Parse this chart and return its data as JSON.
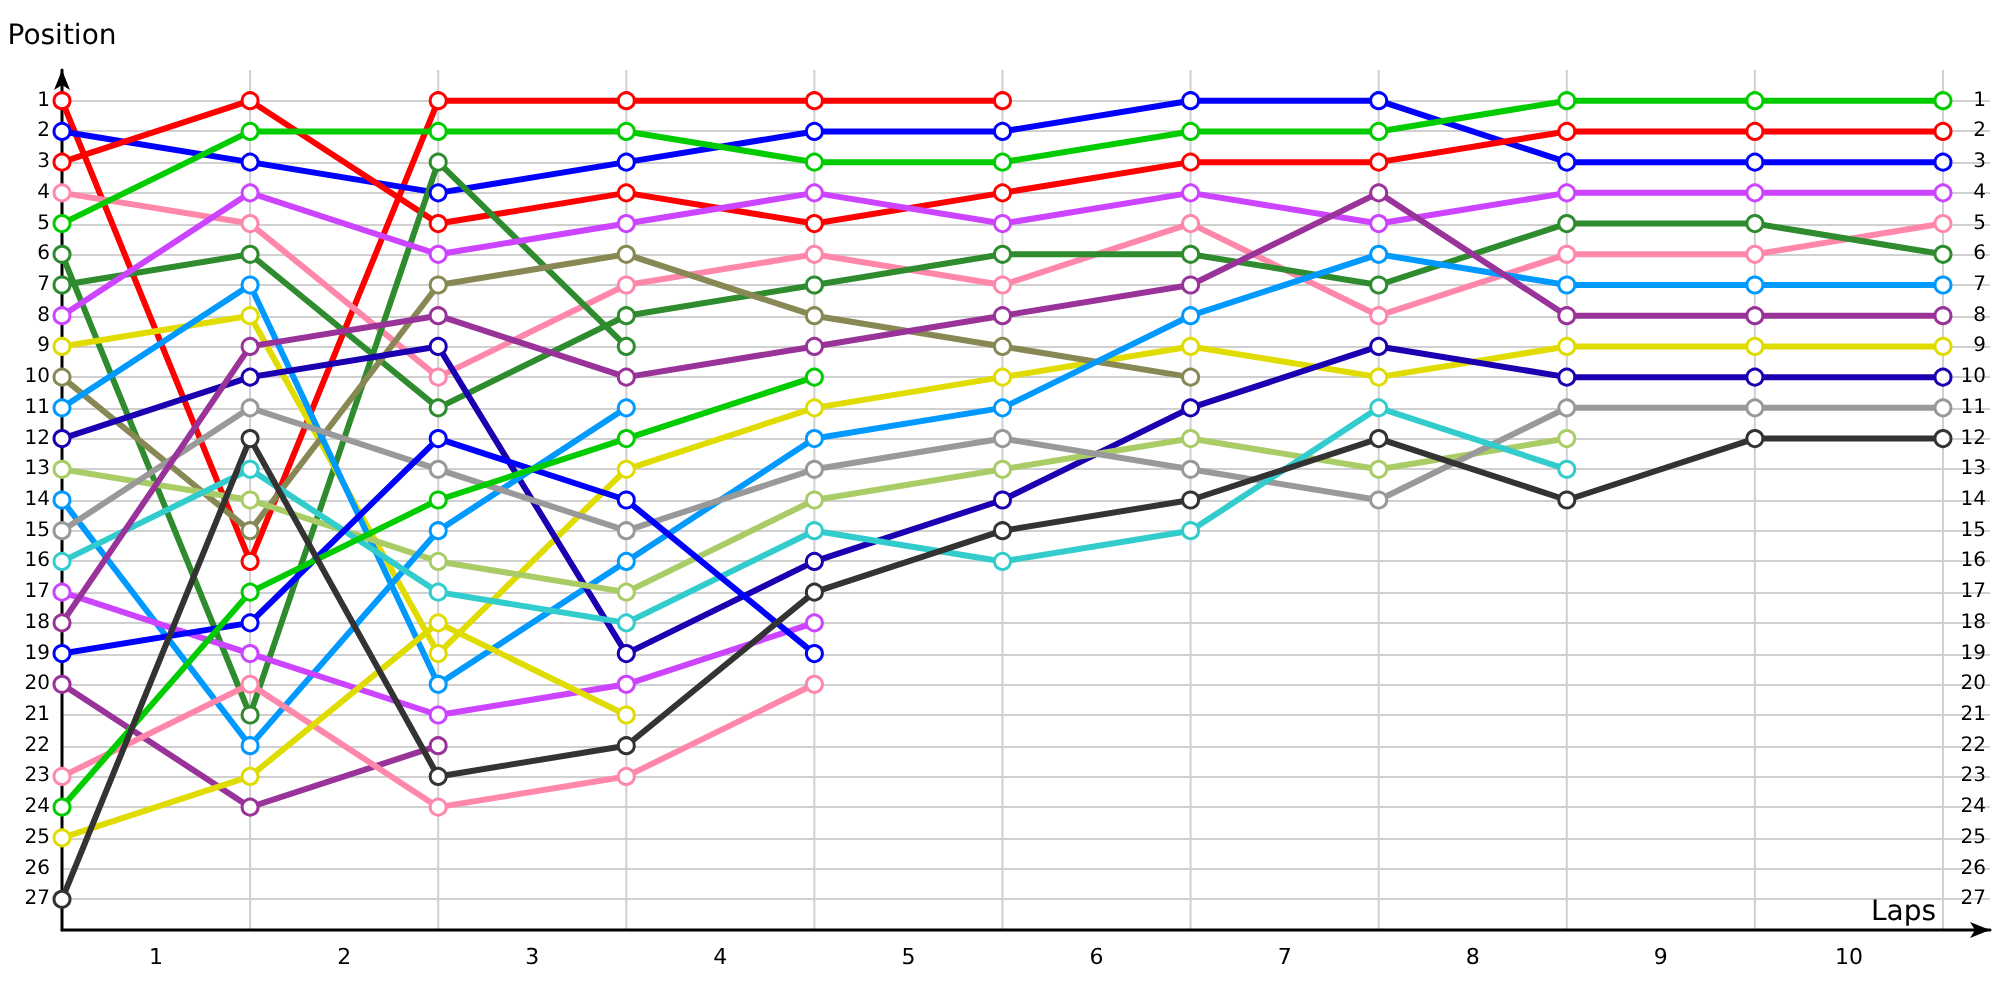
{
  "chart_data": {
    "type": "line",
    "xlabel": "Laps",
    "ylabel": "Position",
    "marker": "circle",
    "line_style": "solid",
    "grid": true,
    "x": [
      0,
      1,
      2,
      3,
      4,
      5,
      6,
      7,
      8,
      9,
      10
    ],
    "xlim": [
      0,
      10.25
    ],
    "xticks": [
      {
        "value": 0,
        "label": null
      },
      {
        "value": 0.5,
        "label": "1"
      },
      {
        "value": 1,
        "label": null
      },
      {
        "value": 1.5,
        "label": "2"
      },
      {
        "value": 2,
        "label": null
      },
      {
        "value": 2.5,
        "label": "3"
      },
      {
        "value": 3,
        "label": null
      },
      {
        "value": 3.5,
        "label": "4"
      },
      {
        "value": 4,
        "label": null
      },
      {
        "value": 4.5,
        "label": "5"
      },
      {
        "value": 5,
        "label": null
      },
      {
        "value": 5.5,
        "label": "6"
      },
      {
        "value": 6,
        "label": null
      },
      {
        "value": 6.5,
        "label": "7"
      },
      {
        "value": 7,
        "label": null
      },
      {
        "value": 7.5,
        "label": "8"
      },
      {
        "value": 8,
        "label": null
      },
      {
        "value": 8.5,
        "label": "9"
      },
      {
        "value": 9,
        "label": null
      },
      {
        "value": 9.5,
        "label": "10"
      },
      {
        "value": 10,
        "label": null
      }
    ],
    "ylim": [
      28,
      0
    ],
    "yticks": [
      1,
      2,
      3,
      4,
      5,
      6,
      7,
      8,
      9,
      10,
      11,
      12,
      13,
      14,
      15,
      16,
      17,
      18,
      19,
      20,
      21,
      22,
      23,
      24,
      25,
      26,
      27
    ],
    "y2lim": [
      28,
      0
    ],
    "y2ticks": [
      1,
      2,
      3,
      4,
      5,
      6,
      7,
      8,
      9,
      10,
      11,
      12,
      13,
      14,
      15,
      16,
      17,
      18,
      19,
      20,
      21,
      22,
      23,
      24,
      25,
      26,
      27
    ],
    "series": [
      {
        "color": "#ff0000",
        "values": [
          1,
          16,
          1,
          1,
          1,
          1,
          null,
          null,
          null,
          null,
          null
        ]
      },
      {
        "color": "#0000ff",
        "values": [
          2,
          3,
          4,
          3,
          2,
          2,
          1,
          1,
          3,
          3,
          3
        ]
      },
      {
        "color": "#ff0000",
        "values": [
          3,
          1,
          5,
          4,
          5,
          4,
          3,
          3,
          2,
          2,
          2
        ]
      },
      {
        "color": "#ff88aa",
        "values": [
          4,
          5,
          10,
          7,
          6,
          7,
          5,
          8,
          6,
          6,
          5
        ]
      },
      {
        "color": "#00cc00",
        "values": [
          5,
          2,
          2,
          2,
          3,
          3,
          2,
          2,
          1,
          1,
          1
        ]
      },
      {
        "color": "#2e8b2e",
        "values": [
          6,
          21,
          3,
          9,
          null,
          null,
          null,
          null,
          null,
          null,
          null
        ]
      },
      {
        "color": "#2e8b2e",
        "values": [
          7,
          6,
          11,
          8,
          7,
          6,
          6,
          7,
          5,
          5,
          6
        ]
      },
      {
        "color": "#cc44ff",
        "values": [
          8,
          4,
          6,
          5,
          4,
          5,
          4,
          5,
          4,
          4,
          4
        ]
      },
      {
        "color": "#e0dc00",
        "values": [
          9,
          8,
          19,
          13,
          11,
          10,
          9,
          10,
          9,
          9,
          9
        ]
      },
      {
        "color": "#888855",
        "values": [
          10,
          15,
          7,
          6,
          8,
          9,
          10,
          null,
          null,
          null,
          null
        ]
      },
      {
        "color": "#0099ff",
        "values": [
          11,
          7,
          20,
          16,
          12,
          11,
          8,
          6,
          7,
          7,
          7
        ]
      },
      {
        "color": "#1a00b0",
        "values": [
          12,
          10,
          9,
          19,
          16,
          14,
          11,
          9,
          10,
          10,
          10
        ]
      },
      {
        "color": "#aacc66",
        "values": [
          13,
          14,
          16,
          17,
          14,
          13,
          12,
          13,
          12,
          null,
          null
        ]
      },
      {
        "color": "#0099ff",
        "values": [
          14,
          22,
          15,
          11,
          null,
          null,
          null,
          null,
          null,
          null,
          null
        ]
      },
      {
        "color": "#999999",
        "values": [
          15,
          11,
          13,
          15,
          13,
          12,
          13,
          14,
          11,
          11,
          11
        ]
      },
      {
        "color": "#33cccc",
        "values": [
          16,
          13,
          17,
          18,
          15,
          16,
          15,
          11,
          13,
          null,
          null
        ]
      },
      {
        "color": "#cc44ff",
        "values": [
          17,
          19,
          21,
          20,
          18,
          null,
          null,
          null,
          null,
          null,
          null
        ]
      },
      {
        "color": "#993399",
        "values": [
          18,
          9,
          8,
          10,
          9,
          8,
          7,
          4,
          8,
          8,
          8
        ]
      },
      {
        "color": "#0000ff",
        "values": [
          19,
          18,
          12,
          14,
          19,
          null,
          null,
          null,
          null,
          null,
          null
        ]
      },
      {
        "color": "#993399",
        "values": [
          20,
          24,
          22,
          null,
          null,
          null,
          null,
          null,
          null,
          null,
          null
        ]
      },
      {
        "color": "#ff88aa",
        "values": [
          23,
          20,
          24,
          23,
          20,
          null,
          null,
          null,
          null,
          null,
          null
        ]
      },
      {
        "color": "#00cc00",
        "values": [
          24,
          17,
          14,
          12,
          10,
          null,
          null,
          null,
          null,
          null,
          null
        ]
      },
      {
        "color": "#e0dc00",
        "values": [
          25,
          23,
          18,
          21,
          null,
          null,
          null,
          null,
          null,
          null,
          null
        ]
      },
      {
        "color": "#333333",
        "values": [
          27,
          12,
          23,
          22,
          17,
          15,
          14,
          12,
          14,
          12,
          12
        ]
      }
    ]
  }
}
